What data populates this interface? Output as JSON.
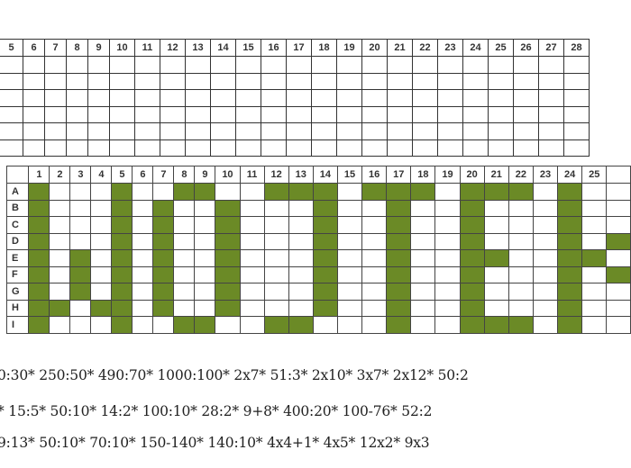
{
  "colors": {
    "fill": "#6b8a26",
    "grid": "#333333"
  },
  "top_grid": {
    "columns": [
      "5",
      "6",
      "7",
      "8",
      "9",
      "10",
      "11",
      "12",
      "13",
      "14",
      "15",
      "16",
      "17",
      "18",
      "19",
      "20",
      "21",
      "22",
      "23",
      "24",
      "25",
      "26",
      "27",
      "28"
    ],
    "row_count": 6
  },
  "bottom_grid": {
    "columns": [
      "1",
      "2",
      "3",
      "4",
      "5",
      "6",
      "7",
      "8",
      "9",
      "10",
      "11",
      "12",
      "13",
      "14",
      "15",
      "16",
      "17",
      "18",
      "19",
      "20",
      "21",
      "22",
      "23",
      "24",
      "25",
      ""
    ],
    "rows": [
      {
        "label": "A",
        "filled": [
          1,
          5,
          8,
          9,
          12,
          13,
          14,
          16,
          17,
          18,
          20,
          21,
          22,
          24
        ]
      },
      {
        "label": "B",
        "filled": [
          1,
          5,
          7,
          10,
          14,
          17,
          20,
          24
        ]
      },
      {
        "label": "C",
        "filled": [
          1,
          5,
          7,
          10,
          14,
          17,
          20,
          24
        ]
      },
      {
        "label": "D",
        "filled": [
          1,
          5,
          7,
          10,
          14,
          17,
          20,
          24,
          26
        ]
      },
      {
        "label": "E",
        "filled": [
          1,
          3,
          5,
          7,
          10,
          14,
          17,
          20,
          21,
          24,
          25
        ]
      },
      {
        "label": "F",
        "filled": [
          1,
          3,
          5,
          7,
          10,
          14,
          17,
          20,
          24,
          26
        ]
      },
      {
        "label": "G",
        "filled": [
          1,
          3,
          5,
          7,
          10,
          14,
          17,
          20,
          24
        ]
      },
      {
        "label": "H",
        "filled": [
          1,
          2,
          4,
          5,
          7,
          10,
          14,
          17,
          20,
          24
        ]
      },
      {
        "label": "I",
        "filled": [
          1,
          5,
          8,
          9,
          12,
          13,
          17,
          20,
          21,
          22,
          24
        ]
      }
    ]
  },
  "expressions": [
    "0:30* 250:50* 490:70* 1000:100* 2x7* 51:3* 2x10* 3x7* 2x12* 50:2",
    "* 15:5* 50:10* 14:2* 100:10* 28:2* 9+8* 400:20* 100-76* 52:2",
    "9:13* 50:10* 70:10* 150-140* 140:10* 4x4+1* 4x5* 12x2* 9x3"
  ]
}
